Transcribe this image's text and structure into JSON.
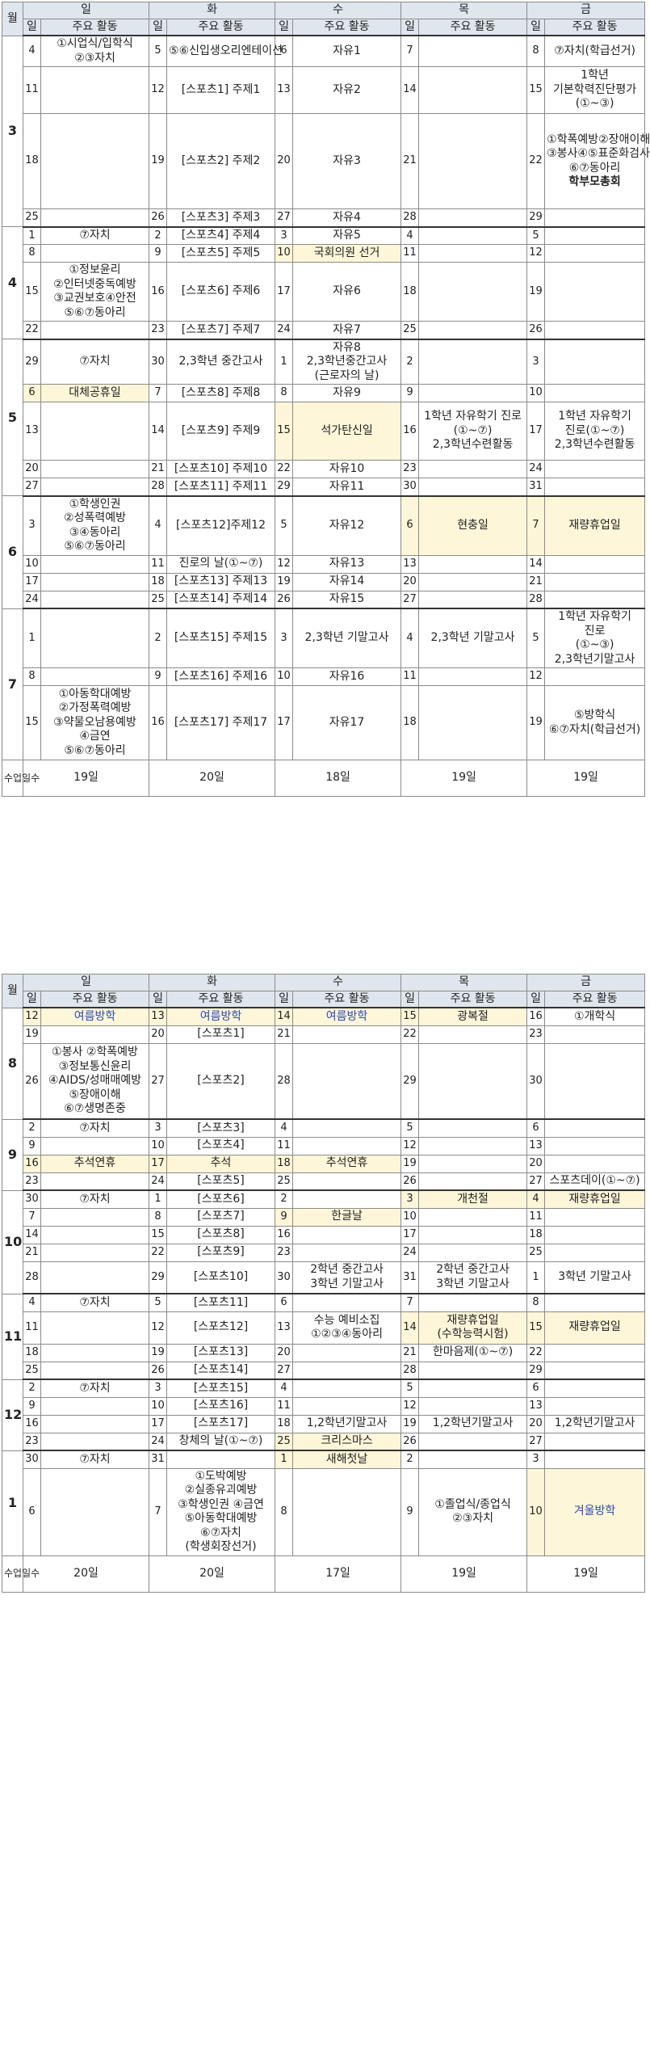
{
  "header": {
    "month_label": "월",
    "days": [
      "일",
      "화",
      "수",
      "목",
      "금"
    ],
    "day_col": "일",
    "act_col": "주요 활동"
  },
  "semester1": {
    "total_label": "수업일수",
    "totals": [
      "19일",
      "20일",
      "18일",
      "19일",
      "19일"
    ],
    "months": [
      {
        "month": "3",
        "weeks": [
          [
            [
              "4",
              "①시업식/입학식\n②③자치"
            ],
            [
              "5",
              "⑤⑥신입생오리엔테이션"
            ],
            [
              "6",
              "자유1"
            ],
            [
              "7",
              ""
            ],
            [
              "8",
              "⑦자치(학급선거)"
            ]
          ],
          [
            [
              "11",
              ""
            ],
            [
              "12",
              "[스포츠1] 주제1"
            ],
            [
              "13",
              "자유2"
            ],
            [
              "14",
              ""
            ],
            [
              "15",
              "1학년\n기본학력진단평가\n(①~③)"
            ]
          ],
          [
            [
              "18",
              ""
            ],
            [
              "19",
              "[스포츠2] 주제2"
            ],
            [
              "20",
              "자유3"
            ],
            [
              "21",
              ""
            ],
            [
              "22",
              "①학폭예방②장애이해\n③봉사④⑤표준화검사\n⑥⑦동아리\n학부모총회"
            ]
          ],
          [
            [
              "25",
              ""
            ],
            [
              "26",
              "[스포츠3] 주제3"
            ],
            [
              "27",
              "자유4"
            ],
            [
              "28",
              ""
            ],
            [
              "29",
              ""
            ]
          ]
        ]
      },
      {
        "month": "4",
        "weeks": [
          [
            [
              "1",
              "⑦자치"
            ],
            [
              "2",
              "[스포츠4] 주제4"
            ],
            [
              "3",
              "자유5"
            ],
            [
              "4",
              ""
            ],
            [
              "5",
              ""
            ]
          ],
          [
            [
              "8",
              ""
            ],
            [
              "9",
              "[스포츠5] 주제5"
            ],
            [
              "10",
              "국회의원 선거"
            ],
            [
              "11",
              ""
            ],
            [
              "12",
              ""
            ]
          ],
          [
            [
              "15",
              "①정보윤리\n②인터넷중독예방\n③교권보호④안전\n⑤⑥⑦동아리"
            ],
            [
              "16",
              "[스포츠6] 주제6"
            ],
            [
              "17",
              "자유6"
            ],
            [
              "18",
              ""
            ],
            [
              "19",
              ""
            ]
          ],
          [
            [
              "22",
              ""
            ],
            [
              "23",
              "[스포츠7] 주제7"
            ],
            [
              "24",
              "자유7"
            ],
            [
              "25",
              ""
            ],
            [
              "26",
              ""
            ]
          ]
        ]
      },
      {
        "month": "5",
        "weeks": [
          [
            [
              "29",
              "⑦자치"
            ],
            [
              "30",
              "2,3학년 중간고사"
            ],
            [
              "1",
              "자유8\n2,3학년중간고사\n(근로자의 날)"
            ],
            [
              "2",
              ""
            ],
            [
              "3",
              ""
            ]
          ],
          [
            [
              "6",
              "대체공휴일"
            ],
            [
              "7",
              "[스포츠8] 주제8"
            ],
            [
              "8",
              "자유9"
            ],
            [
              "9",
              ""
            ],
            [
              "10",
              ""
            ]
          ],
          [
            [
              "13",
              ""
            ],
            [
              "14",
              "[스포츠9] 주제9"
            ],
            [
              "15",
              "석가탄신일"
            ],
            [
              "16",
              "1학년 자유학기 진로(①~⑦)\n2,3학년수련활동"
            ],
            [
              "17",
              "1학년 자유학기 진로(①~⑦)\n2,3학년수련활동"
            ]
          ],
          [
            [
              "20",
              ""
            ],
            [
              "21",
              "[스포츠10] 주제10"
            ],
            [
              "22",
              "자유10"
            ],
            [
              "23",
              ""
            ],
            [
              "24",
              ""
            ]
          ],
          [
            [
              "27",
              ""
            ],
            [
              "28",
              "[스포츠11] 주제11"
            ],
            [
              "29",
              "자유11"
            ],
            [
              "30",
              ""
            ],
            [
              "31",
              ""
            ]
          ]
        ]
      },
      {
        "month": "6",
        "weeks": [
          [
            [
              "3",
              "①학생인권\n②성폭력예방\n③④동아리\n⑤⑥⑦동아리"
            ],
            [
              "4",
              "[스포츠12]주제12"
            ],
            [
              "5",
              "자유12"
            ],
            [
              "6",
              "현충일"
            ],
            [
              "7",
              "재량휴업일"
            ]
          ],
          [
            [
              "10",
              ""
            ],
            [
              "11",
              "진로의 날(①~⑦)"
            ],
            [
              "12",
              "자유13"
            ],
            [
              "13",
              ""
            ],
            [
              "14",
              ""
            ]
          ],
          [
            [
              "17",
              ""
            ],
            [
              "18",
              "[스포츠13] 주제13"
            ],
            [
              "19",
              "자유14"
            ],
            [
              "20",
              ""
            ],
            [
              "21",
              ""
            ]
          ],
          [
            [
              "24",
              ""
            ],
            [
              "25",
              "[스포츠14] 주제14"
            ],
            [
              "26",
              "자유15"
            ],
            [
              "27",
              ""
            ],
            [
              "28",
              ""
            ]
          ]
        ]
      },
      {
        "month": "7",
        "weeks": [
          [
            [
              "1",
              ""
            ],
            [
              "2",
              "[스포츠15] 주제15"
            ],
            [
              "3",
              "2,3학년 기말고사"
            ],
            [
              "4",
              "2,3학년 기말고사"
            ],
            [
              "5",
              "1학년 자유학기 진로\n(①~③)\n2,3학년기말고사"
            ]
          ],
          [
            [
              "8",
              ""
            ],
            [
              "9",
              "[스포츠16] 주제16"
            ],
            [
              "10",
              "자유16"
            ],
            [
              "11",
              ""
            ],
            [
              "12",
              ""
            ]
          ],
          [
            [
              "15",
              "①아동학대예방\n②가정폭력예방\n③약물오남용예방\n④금연\n⑤⑥⑦동아리"
            ],
            [
              "16",
              "[스포츠17] 주제17"
            ],
            [
              "17",
              "자유17"
            ],
            [
              "18",
              ""
            ],
            [
              "19",
              "⑤방학식\n⑥⑦자치(학급선거)"
            ]
          ]
        ]
      }
    ]
  },
  "semester2": {
    "total_label": "수업일수",
    "totals": [
      "20일",
      "20일",
      "17일",
      "19일",
      "19일"
    ],
    "months": [
      {
        "month": "8",
        "weeks": [
          [
            [
              "12",
              "여름방학"
            ],
            [
              "13",
              "여름방학"
            ],
            [
              "14",
              "여름방학"
            ],
            [
              "15",
              "광복절"
            ],
            [
              "16",
              "①개학식"
            ]
          ],
          [
            [
              "19",
              ""
            ],
            [
              "20",
              "[스포츠1]"
            ],
            [
              "21",
              ""
            ],
            [
              "22",
              ""
            ],
            [
              "23",
              ""
            ]
          ],
          [
            [
              "26",
              "①봉사 ②학폭예방\n③정보통신윤리\n④AIDS/성매매예방\n⑤장애이해\n⑥⑦생명존중"
            ],
            [
              "27",
              "[스포츠2]"
            ],
            [
              "28",
              ""
            ],
            [
              "29",
              ""
            ],
            [
              "30",
              ""
            ]
          ]
        ]
      },
      {
        "month": "9",
        "weeks": [
          [
            [
              "2",
              "⑦자치"
            ],
            [
              "3",
              "[스포츠3]"
            ],
            [
              "4",
              ""
            ],
            [
              "5",
              ""
            ],
            [
              "6",
              ""
            ]
          ],
          [
            [
              "9",
              ""
            ],
            [
              "10",
              "[스포츠4]"
            ],
            [
              "11",
              ""
            ],
            [
              "12",
              ""
            ],
            [
              "13",
              ""
            ]
          ],
          [
            [
              "16",
              "추석연휴"
            ],
            [
              "17",
              "추석"
            ],
            [
              "18",
              "추석연휴"
            ],
            [
              "19",
              ""
            ],
            [
              "20",
              ""
            ]
          ],
          [
            [
              "23",
              ""
            ],
            [
              "24",
              "[스포츠5]"
            ],
            [
              "25",
              ""
            ],
            [
              "26",
              ""
            ],
            [
              "27",
              "스포츠데이(①~⑦)"
            ]
          ]
        ]
      },
      {
        "month": "10",
        "weeks": [
          [
            [
              "30",
              "⑦자치"
            ],
            [
              "1",
              "[스포츠6]"
            ],
            [
              "2",
              ""
            ],
            [
              "3",
              "개천절"
            ],
            [
              "4",
              "재량휴업일"
            ]
          ],
          [
            [
              "7",
              ""
            ],
            [
              "8",
              "[스포츠7]"
            ],
            [
              "9",
              "한글날"
            ],
            [
              "10",
              ""
            ],
            [
              "11",
              ""
            ]
          ],
          [
            [
              "14",
              ""
            ],
            [
              "15",
              "[스포츠8]"
            ],
            [
              "16",
              ""
            ],
            [
              "17",
              ""
            ],
            [
              "18",
              ""
            ]
          ],
          [
            [
              "21",
              ""
            ],
            [
              "22",
              "[스포츠9]"
            ],
            [
              "23",
              ""
            ],
            [
              "24",
              ""
            ],
            [
              "25",
              ""
            ]
          ],
          [
            [
              "28",
              ""
            ],
            [
              "29",
              "[스포츠10]"
            ],
            [
              "30",
              "2학년 중간고사\n3학년 기말고사"
            ],
            [
              "31",
              "2학년 중간고사\n3학년 기말고사"
            ],
            [
              "1",
              "3학년 기말고사"
            ]
          ]
        ]
      },
      {
        "month": "11",
        "weeks": [
          [
            [
              "4",
              "⑦자치"
            ],
            [
              "5",
              "[스포츠11]"
            ],
            [
              "6",
              ""
            ],
            [
              "7",
              ""
            ],
            [
              "8",
              ""
            ]
          ],
          [
            [
              "11",
              ""
            ],
            [
              "12",
              "[스포츠12]"
            ],
            [
              "13",
              "수능 예비소집\n①②③④동아리"
            ],
            [
              "14",
              "재량휴업일\n(수학능력시험)"
            ],
            [
              "15",
              "재량휴업일"
            ]
          ],
          [
            [
              "18",
              ""
            ],
            [
              "19",
              "[스포츠13]"
            ],
            [
              "20",
              ""
            ],
            [
              "21",
              "한마음제(①~⑦)"
            ],
            [
              "22",
              ""
            ]
          ],
          [
            [
              "25",
              ""
            ],
            [
              "26",
              "[스포츠14]"
            ],
            [
              "27",
              ""
            ],
            [
              "28",
              ""
            ],
            [
              "29",
              ""
            ]
          ]
        ]
      },
      {
        "month": "12",
        "weeks": [
          [
            [
              "2",
              "⑦자치"
            ],
            [
              "3",
              "[스포츠15]"
            ],
            [
              "4",
              ""
            ],
            [
              "5",
              ""
            ],
            [
              "6",
              ""
            ]
          ],
          [
            [
              "9",
              ""
            ],
            [
              "10",
              "[스포츠16]"
            ],
            [
              "11",
              ""
            ],
            [
              "12",
              ""
            ],
            [
              "13",
              ""
            ]
          ],
          [
            [
              "16",
              ""
            ],
            [
              "17",
              "[스포츠17]"
            ],
            [
              "18",
              "1,2학년기말고사"
            ],
            [
              "19",
              "1,2학년기말고사"
            ],
            [
              "20",
              "1,2학년기말고사"
            ]
          ],
          [
            [
              "23",
              ""
            ],
            [
              "24",
              "창체의 날(①~⑦)"
            ],
            [
              "25",
              "크리스마스"
            ],
            [
              "26",
              ""
            ],
            [
              "27",
              ""
            ]
          ]
        ]
      },
      {
        "month": "1",
        "weeks": [
          [
            [
              "30",
              "⑦자치"
            ],
            [
              "31",
              ""
            ],
            [
              "1",
              "새해첫날"
            ],
            [
              "2",
              ""
            ],
            [
              "3",
              ""
            ]
          ],
          [
            [
              "6",
              ""
            ],
            [
              "7",
              "①도박예방\n②실종유괴예방\n③학생인권 ④금연\n⑤아동학대예방\n⑥⑦자치(학생회장선거)"
            ],
            [
              "8",
              ""
            ],
            [
              "9",
              "①졸업식/종업식\n②③자치"
            ],
            [
              "10",
              "겨울방학"
            ]
          ]
        ]
      }
    ]
  }
}
